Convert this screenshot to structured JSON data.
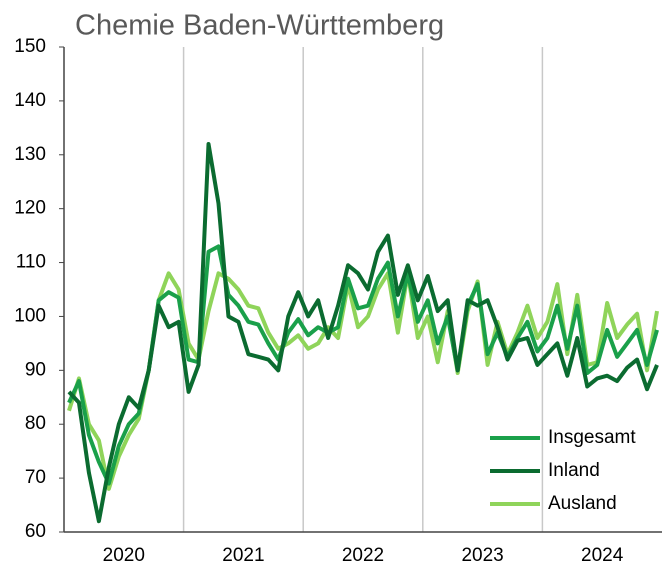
{
  "chart_data": {
    "type": "line",
    "title": "Chemie Baden-Württemberg",
    "x": [
      0.5,
      1.5,
      2.5,
      3.5,
      4.5,
      5.5,
      6.5,
      7.5,
      8.5,
      9.5,
      10.5,
      11.5,
      12.5,
      13.5,
      14.5,
      15.5,
      16.5,
      17.5,
      18.5,
      19.5,
      20.5,
      21.5,
      22.5,
      23.5,
      24.5,
      25.5,
      26.5,
      27.5,
      28.5,
      29.5,
      30.5,
      31.5,
      32.5,
      33.5,
      34.5,
      35.5,
      36.5,
      37.5,
      38.5,
      39.5,
      40.5,
      41.5,
      42.5,
      43.5,
      44.5,
      45.5,
      46.5,
      47.5,
      48.5,
      49.5,
      50.5,
      51.5,
      52.5,
      53.5,
      54.5,
      55.5,
      56.5,
      57.5,
      58.5,
      59.5
    ],
    "xlim": [
      0,
      60
    ],
    "xticks": [
      {
        "value": 6,
        "label": "2020"
      },
      {
        "value": 18,
        "label": "2021"
      },
      {
        "value": 30,
        "label": "2022"
      },
      {
        "value": 42,
        "label": "2023"
      },
      {
        "value": 54,
        "label": "2024"
      }
    ],
    "xgrid": [
      12,
      24,
      36,
      48
    ],
    "ylim": [
      60,
      150
    ],
    "yticks": [
      60,
      70,
      80,
      90,
      100,
      110,
      120,
      130,
      140,
      150
    ],
    "legend": "lower right",
    "series": [
      {
        "name": "Insgesamt",
        "color": "#1aa04a",
        "values": [
          84,
          88,
          78,
          73,
          69,
          76,
          80,
          82,
          90,
          103,
          104.5,
          103.5,
          92,
          91.5,
          112,
          113,
          104,
          102,
          99,
          98.5,
          95,
          92,
          97,
          99.5,
          96.5,
          98,
          97,
          98,
          107,
          101.5,
          102,
          107,
          110,
          100,
          108,
          99,
          103,
          95,
          100,
          90,
          102,
          106,
          93,
          97,
          92.5,
          96,
          99,
          93.5,
          96,
          102,
          94,
          102,
          89.5,
          91,
          97.5,
          92.5,
          95,
          97.5,
          91,
          97.5
        ]
      },
      {
        "name": "Inland",
        "color": "#0b6b30",
        "values": [
          86,
          84,
          71,
          62,
          72,
          80,
          85,
          83,
          90,
          102,
          98,
          99,
          86,
          91,
          132,
          121,
          100,
          99,
          93,
          92.5,
          92,
          90,
          100,
          104.5,
          100,
          103,
          96,
          102,
          109.5,
          108,
          105,
          112,
          115,
          104,
          109.5,
          103,
          107.5,
          101,
          103,
          90,
          103,
          102,
          103,
          98,
          92,
          95.5,
          96,
          91,
          93,
          95,
          89,
          96,
          87,
          88.5,
          89,
          88,
          90.5,
          92,
          86.5,
          91
        ]
      },
      {
        "name": "Ausland",
        "color": "#8fd45a",
        "values": [
          82.5,
          88.5,
          80,
          77,
          68,
          74,
          78,
          81,
          90,
          103,
          108,
          105,
          95,
          92,
          101,
          108,
          107,
          105,
          102,
          101.5,
          97,
          94,
          95,
          96.5,
          94,
          95,
          98,
          96,
          106,
          98,
          100,
          105,
          108,
          97,
          108,
          96,
          100,
          91.5,
          101,
          89.5,
          101,
          106.5,
          91,
          99,
          93,
          97,
          102,
          96,
          99,
          106,
          93,
          104,
          91,
          91.5,
          102.5,
          96,
          98.5,
          100.5,
          90,
          101
        ]
      }
    ]
  }
}
